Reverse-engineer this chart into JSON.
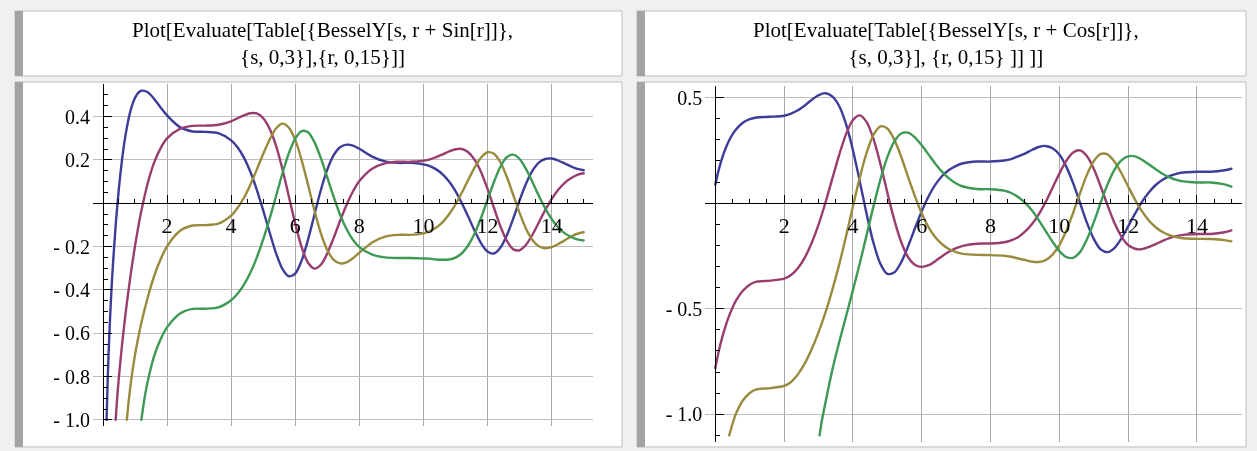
{
  "chart_data": [
    {
      "type": "line",
      "title": "Plot[Evaluate[Table[{BesselY[s, r + Sin[r]]},\n{s, 0,3}],{r, 0,15}]]",
      "xlim": [
        -0.3,
        15.3
      ],
      "ylim": [
        -1.03,
        0.55
      ],
      "xticks": [
        {
          "value": 0.5,
          "label": null
        },
        {
          "value": 1,
          "label": null
        },
        {
          "value": 1.5,
          "label": null
        },
        2,
        {
          "value": 2.5,
          "label": null
        },
        {
          "value": 3,
          "label": null
        },
        {
          "value": 3.5,
          "label": null
        },
        4,
        {
          "value": 4.5,
          "label": null
        },
        {
          "value": 5,
          "label": null
        },
        {
          "value": 5.5,
          "label": null
        },
        6,
        {
          "value": 6.5,
          "label": null
        },
        {
          "value": 7,
          "label": null
        },
        {
          "value": 7.5,
          "label": null
        },
        8,
        {
          "value": 8.5,
          "label": null
        },
        {
          "value": 9,
          "label": null
        },
        {
          "value": 9.5,
          "label": null
        },
        10,
        {
          "value": 10.5,
          "label": null
        },
        {
          "value": 11,
          "label": null
        },
        {
          "value": 11.5,
          "label": null
        },
        12,
        {
          "value": 12.5,
          "label": null
        },
        {
          "value": 13,
          "label": null
        },
        {
          "value": 13.5,
          "label": null
        },
        14,
        {
          "value": 14.5,
          "label": null
        },
        {
          "value": 15,
          "label": null
        }
      ],
      "yticks": [
        {
          "value": 0.5,
          "label": null
        },
        {
          "value": 0.45,
          "label": null
        },
        0.4,
        {
          "value": 0.35,
          "label": null
        },
        {
          "value": 0.3,
          "label": null
        },
        {
          "value": 0.25,
          "label": null
        },
        0.2,
        {
          "value": 0.15,
          "label": null
        },
        {
          "value": 0.1,
          "label": null
        },
        {
          "value": 0.05,
          "label": null
        },
        {
          "value": -0.05,
          "label": null
        },
        {
          "value": -0.1,
          "label": null
        },
        {
          "value": -0.15,
          "label": null
        },
        {
          "value": -0.2,
          "label": "- 0.2"
        },
        {
          "value": -0.25,
          "label": null
        },
        {
          "value": -0.3,
          "label": null
        },
        {
          "value": -0.35,
          "label": null
        },
        {
          "value": -0.4,
          "label": "- 0.4"
        },
        {
          "value": -0.45,
          "label": null
        },
        {
          "value": -0.5,
          "label": null
        },
        {
          "value": -0.55,
          "label": null
        },
        {
          "value": -0.6,
          "label": "- 0.6"
        },
        {
          "value": -0.65,
          "label": null
        },
        {
          "value": -0.7,
          "label": null
        },
        {
          "value": -0.75,
          "label": null
        },
        {
          "value": -0.8,
          "label": "- 0.8"
        },
        {
          "value": -0.85,
          "label": null
        },
        {
          "value": -0.9,
          "label": null
        },
        {
          "value": -0.95,
          "label": null
        },
        {
          "value": -1.0,
          "label": "- 1.0"
        }
      ],
      "grid": true,
      "series": [
        {
          "color": "#3d3d99",
          "x": [
            0.114,
            0.15,
            0.2,
            0.25,
            0.3,
            0.4,
            0.5,
            0.6,
            0.7,
            0.8,
            0.9,
            1.0,
            1.1,
            1.2,
            1.4,
            1.6,
            1.8,
            2.0,
            2.4,
            2.8,
            3.2,
            3.6,
            4.0,
            4.2,
            4.4,
            4.6,
            4.8,
            5.0,
            5.2,
            5.4,
            5.6,
            5.8,
            6.0,
            6.2,
            6.4,
            6.6,
            6.8,
            7.0,
            7.2,
            7.4,
            7.6,
            7.8,
            8.0,
            8.4,
            8.8,
            9.2,
            9.6,
            10.0,
            10.2,
            10.4,
            10.6,
            10.8,
            11.0,
            11.2,
            11.4,
            11.6,
            11.8,
            12.0,
            12.2,
            12.4,
            12.6,
            12.8,
            13.0,
            13.2,
            13.4,
            13.6,
            13.8,
            14.0,
            14.2,
            14.4,
            14.6,
            14.8,
            15.0
          ],
          "values": [
            -1.0,
            -0.809,
            -0.608,
            -0.448,
            -0.314,
            -0.098,
            0.071,
            0.205,
            0.309,
            0.389,
            0.447,
            0.485,
            0.509,
            0.519,
            0.512,
            0.481,
            0.442,
            0.405,
            0.351,
            0.331,
            0.329,
            0.323,
            0.29,
            0.258,
            0.21,
            0.145,
            0.063,
            -0.033,
            -0.134,
            -0.23,
            -0.303,
            -0.337,
            -0.325,
            -0.265,
            -0.168,
            -0.053,
            0.061,
            0.155,
            0.222,
            0.258,
            0.27,
            0.266,
            0.251,
            0.215,
            0.193,
            0.186,
            0.186,
            0.179,
            0.171,
            0.156,
            0.133,
            0.1,
            0.056,
            0.0,
            -0.063,
            -0.128,
            -0.185,
            -0.223,
            -0.232,
            -0.206,
            -0.149,
            -0.072,
            0.013,
            0.09,
            0.149,
            0.187,
            0.204,
            0.206,
            0.197,
            0.184,
            0.17,
            0.158,
            0.152
          ]
        },
        {
          "color": "#993d71",
          "x": [
            0.397,
            0.45,
            0.5,
            0.6,
            0.7,
            0.8,
            0.9,
            1.0,
            1.1,
            1.2,
            1.4,
            1.6,
            1.8,
            2.0,
            2.4,
            2.8,
            3.2,
            3.6,
            4.0,
            4.2,
            4.4,
            4.6,
            4.8,
            5.0,
            5.2,
            5.4,
            5.6,
            5.8,
            6.0,
            6.2,
            6.4,
            6.6,
            6.8,
            7.0,
            7.2,
            7.4,
            7.6,
            7.8,
            8.0,
            8.4,
            8.8,
            9.2,
            9.6,
            10.0,
            10.2,
            10.4,
            10.6,
            10.8,
            11.0,
            11.2,
            11.4,
            11.6,
            11.8,
            12.0,
            12.2,
            12.4,
            12.6,
            12.8,
            13.0,
            13.2,
            13.4,
            13.6,
            13.8,
            14.0,
            14.2,
            14.4,
            14.6,
            14.8,
            15.0
          ],
          "values": [
            -1.0,
            -0.889,
            -0.8,
            -0.648,
            -0.518,
            -0.401,
            -0.295,
            -0.199,
            -0.112,
            -0.035,
            0.093,
            0.188,
            0.254,
            0.299,
            0.343,
            0.357,
            0.358,
            0.362,
            0.378,
            0.392,
            0.405,
            0.415,
            0.414,
            0.392,
            0.344,
            0.266,
            0.158,
            0.032,
            -0.094,
            -0.203,
            -0.275,
            -0.302,
            -0.284,
            -0.232,
            -0.16,
            -0.081,
            -0.008,
            0.054,
            0.102,
            0.159,
            0.184,
            0.191,
            0.191,
            0.196,
            0.202,
            0.213,
            0.225,
            0.239,
            0.249,
            0.25,
            0.235,
            0.2,
            0.143,
            0.066,
            -0.021,
            -0.106,
            -0.173,
            -0.212,
            -0.217,
            -0.192,
            -0.146,
            -0.089,
            -0.032,
            0.019,
            0.061,
            0.093,
            0.115,
            0.131,
            0.138
          ]
        },
        {
          "color": "#998b3d",
          "x": [
            0.747,
            0.8,
            0.9,
            1.0,
            1.1,
            1.2,
            1.4,
            1.6,
            1.8,
            2.0,
            2.4,
            2.8,
            3.2,
            3.6,
            4.0,
            4.2,
            4.4,
            4.6,
            4.8,
            5.0,
            5.2,
            5.4,
            5.6,
            5.8,
            6.0,
            6.2,
            6.4,
            6.6,
            6.8,
            7.0,
            7.2,
            7.4,
            7.6,
            7.8,
            8.0,
            8.4,
            8.8,
            9.2,
            9.6,
            10.0,
            10.2,
            10.4,
            10.6,
            10.8,
            11.0,
            11.2,
            11.4,
            11.6,
            11.8,
            12.0,
            12.2,
            12.4,
            12.6,
            12.8,
            13.0,
            13.2,
            13.4,
            13.6,
            13.8,
            14.0,
            14.2,
            14.4,
            14.6,
            14.8,
            15.0
          ],
          "values": [
            -1.0,
            -0.918,
            -0.798,
            -0.701,
            -0.622,
            -0.552,
            -0.434,
            -0.336,
            -0.259,
            -0.199,
            -0.128,
            -0.103,
            -0.101,
            -0.094,
            -0.057,
            -0.022,
            0.025,
            0.085,
            0.155,
            0.227,
            0.293,
            0.345,
            0.367,
            0.349,
            0.292,
            0.199,
            0.085,
            -0.034,
            -0.139,
            -0.216,
            -0.262,
            -0.278,
            -0.273,
            -0.254,
            -0.228,
            -0.181,
            -0.154,
            -0.146,
            -0.146,
            -0.139,
            -0.129,
            -0.112,
            -0.087,
            -0.051,
            -0.006,
            0.049,
            0.108,
            0.165,
            0.211,
            0.235,
            0.228,
            0.189,
            0.122,
            0.039,
            -0.045,
            -0.118,
            -0.17,
            -0.199,
            -0.208,
            -0.203,
            -0.189,
            -0.172,
            -0.155,
            -0.141,
            -0.134
          ]
        },
        {
          "color": "#3d9954",
          "x": [
            1.2,
            1.3,
            1.4,
            1.6,
            1.8,
            2.0,
            2.4,
            2.8,
            3.2,
            3.6,
            4.0,
            4.2,
            4.4,
            4.6,
            4.8,
            5.0,
            5.2,
            5.4,
            5.6,
            5.8,
            6.0,
            6.2,
            6.4,
            6.6,
            6.8,
            7.0,
            7.2,
            7.4,
            7.6,
            7.8,
            8.0,
            8.4,
            8.8,
            9.2,
            9.6,
            10.0,
            10.2,
            10.4,
            10.6,
            10.8,
            11.0,
            11.2,
            11.4,
            11.6,
            11.8,
            12.0,
            12.2,
            12.4,
            12.6,
            12.8,
            13.0,
            13.2,
            13.4,
            13.6,
            13.8,
            14.0,
            14.2,
            14.4,
            14.6,
            14.8,
            15.0
          ],
          "values": [
            -1.0,
            -0.899,
            -0.821,
            -0.705,
            -0.628,
            -0.573,
            -0.51,
            -0.488,
            -0.487,
            -0.481,
            -0.448,
            -0.418,
            -0.376,
            -0.321,
            -0.251,
            -0.167,
            -0.072,
            0.032,
            0.137,
            0.23,
            0.298,
            0.333,
            0.327,
            0.282,
            0.208,
            0.119,
            0.029,
            -0.053,
            -0.119,
            -0.169,
            -0.203,
            -0.237,
            -0.25,
            -0.253,
            -0.253,
            -0.255,
            -0.256,
            -0.26,
            -0.261,
            -0.26,
            -0.251,
            -0.231,
            -0.194,
            -0.139,
            -0.067,
            0.016,
            0.098,
            0.168,
            0.212,
            0.224,
            0.204,
            0.158,
            0.098,
            0.034,
            -0.024,
            -0.073,
            -0.111,
            -0.138,
            -0.155,
            -0.167,
            -0.172
          ]
        }
      ]
    },
    {
      "type": "line",
      "title": "Plot[Evaluate[Table[{BesselY[s, r + Cos[r]]},\n{s, 0,3}], {r, 0,15} ]] ]]",
      "xlim": [
        -0.3,
        15.3
      ],
      "ylim": [
        -1.13,
        0.555
      ],
      "xticks": [
        {
          "value": 0.5,
          "label": null
        },
        {
          "value": 1,
          "label": null
        },
        {
          "value": 1.5,
          "label": null
        },
        2,
        {
          "value": 2.5,
          "label": null
        },
        {
          "value": 3,
          "label": null
        },
        {
          "value": 3.5,
          "label": null
        },
        4,
        {
          "value": 4.5,
          "label": null
        },
        {
          "value": 5,
          "label": null
        },
        {
          "value": 5.5,
          "label": null
        },
        6,
        {
          "value": 6.5,
          "label": null
        },
        {
          "value": 7,
          "label": null
        },
        {
          "value": 7.5,
          "label": null
        },
        8,
        {
          "value": 8.5,
          "label": null
        },
        {
          "value": 9,
          "label": null
        },
        {
          "value": 9.5,
          "label": null
        },
        10,
        {
          "value": 10.5,
          "label": null
        },
        {
          "value": 11,
          "label": null
        },
        {
          "value": 11.5,
          "label": null
        },
        12,
        {
          "value": 12.5,
          "label": null
        },
        {
          "value": 13,
          "label": null
        },
        {
          "value": 13.5,
          "label": null
        },
        14,
        {
          "value": 14.5,
          "label": null
        },
        {
          "value": 15,
          "label": null
        }
      ],
      "yticks": [
        0.5,
        {
          "value": 0.4,
          "label": null
        },
        {
          "value": 0.3,
          "label": null
        },
        {
          "value": 0.2,
          "label": null
        },
        {
          "value": 0.1,
          "label": null
        },
        {
          "value": -0.1,
          "label": null
        },
        {
          "value": -0.2,
          "label": null
        },
        {
          "value": -0.3,
          "label": null
        },
        {
          "value": -0.4,
          "label": null
        },
        {
          "value": -0.5,
          "label": "- 0.5"
        },
        {
          "value": -0.6,
          "label": null
        },
        {
          "value": -0.7,
          "label": null
        },
        {
          "value": -0.8,
          "label": null
        },
        {
          "value": -0.9,
          "label": null
        },
        {
          "value": -1.0,
          "label": "- 1.0"
        },
        {
          "value": -1.1,
          "label": null
        }
      ],
      "grid": true,
      "series": [
        {
          "color": "#3d3d99",
          "x": [
            0,
            0.1,
            0.2,
            0.3,
            0.4,
            0.5,
            0.6,
            0.8,
            1.0,
            1.2,
            1.6,
            2.0,
            2.2,
            2.4,
            2.6,
            2.8,
            3.0,
            3.2,
            3.4,
            3.6,
            3.8,
            4.0,
            4.2,
            4.4,
            4.6,
            4.8,
            5.0,
            5.2,
            5.4,
            5.6,
            5.8,
            6.0,
            6.2,
            6.4,
            6.6,
            6.8,
            7.0,
            7.2,
            7.6,
            8.0,
            8.4,
            8.6,
            8.8,
            9.0,
            9.2,
            9.4,
            9.6,
            9.8,
            10.0,
            10.2,
            10.4,
            10.6,
            10.8,
            11.0,
            11.2,
            11.4,
            11.6,
            11.8,
            12.0,
            12.2,
            12.4,
            12.6,
            12.8,
            13.0,
            13.2,
            13.4,
            13.6,
            14.0,
            14.4,
            14.8,
            15.0
          ],
          "values": [
            0.088,
            0.159,
            0.215,
            0.26,
            0.297,
            0.326,
            0.349,
            0.381,
            0.398,
            0.406,
            0.409,
            0.414,
            0.424,
            0.44,
            0.463,
            0.489,
            0.511,
            0.521,
            0.506,
            0.46,
            0.374,
            0.251,
            0.102,
            -0.053,
            -0.19,
            -0.288,
            -0.335,
            -0.329,
            -0.281,
            -0.206,
            -0.12,
            -0.038,
            0.033,
            0.089,
            0.13,
            0.158,
            0.177,
            0.189,
            0.197,
            0.197,
            0.202,
            0.209,
            0.222,
            0.235,
            0.252,
            0.266,
            0.271,
            0.26,
            0.23,
            0.173,
            0.095,
            0.002,
            -0.092,
            -0.169,
            -0.219,
            -0.232,
            -0.213,
            -0.168,
            -0.11,
            -0.05,
            0.006,
            0.051,
            0.086,
            0.111,
            0.128,
            0.139,
            0.145,
            0.149,
            0.149,
            0.156,
            0.163
          ]
        },
        {
          "color": "#993d71",
          "x": [
            0,
            0.1,
            0.2,
            0.3,
            0.4,
            0.5,
            0.6,
            0.8,
            1.0,
            1.2,
            1.6,
            2.0,
            2.2,
            2.4,
            2.6,
            2.8,
            3.0,
            3.2,
            3.4,
            3.6,
            3.8,
            4.0,
            4.2,
            4.4,
            4.6,
            4.8,
            5.0,
            5.2,
            5.4,
            5.6,
            5.8,
            6.0,
            6.2,
            6.4,
            6.6,
            6.8,
            7.0,
            7.2,
            7.6,
            8.0,
            8.4,
            8.6,
            8.8,
            9.0,
            9.2,
            9.4,
            9.6,
            9.8,
            10.0,
            10.2,
            10.4,
            10.6,
            10.8,
            11.0,
            11.2,
            11.4,
            11.6,
            11.8,
            12.0,
            12.2,
            12.4,
            12.6,
            12.8,
            13.0,
            13.2,
            13.4,
            13.6,
            14.0,
            14.4,
            14.8,
            15.0
          ],
          "values": [
            -0.781,
            -0.702,
            -0.636,
            -0.581,
            -0.534,
            -0.495,
            -0.462,
            -0.415,
            -0.386,
            -0.372,
            -0.367,
            -0.358,
            -0.34,
            -0.308,
            -0.258,
            -0.189,
            -0.102,
            0.002,
            0.116,
            0.229,
            0.327,
            0.394,
            0.416,
            0.384,
            0.303,
            0.185,
            0.05,
            -0.078,
            -0.183,
            -0.255,
            -0.292,
            -0.302,
            -0.294,
            -0.274,
            -0.25,
            -0.229,
            -0.213,
            -0.202,
            -0.192,
            -0.191,
            -0.185,
            -0.176,
            -0.161,
            -0.135,
            -0.1,
            -0.053,
            0.005,
            0.072,
            0.14,
            0.2,
            0.24,
            0.25,
            0.223,
            0.163,
            0.08,
            -0.01,
            -0.093,
            -0.157,
            -0.198,
            -0.216,
            -0.218,
            -0.208,
            -0.194,
            -0.179,
            -0.166,
            -0.156,
            -0.15,
            -0.146,
            -0.146,
            -0.138,
            -0.129
          ]
        },
        {
          "color": "#998b3d",
          "x": [
            0.405,
            0.5,
            0.6,
            0.8,
            1.0,
            1.2,
            1.6,
            2.0,
            2.2,
            2.4,
            2.6,
            2.8,
            3.0,
            3.2,
            3.4,
            3.6,
            3.8,
            4.0,
            4.2,
            4.4,
            4.6,
            4.8,
            5.0,
            5.2,
            5.4,
            5.6,
            5.8,
            6.0,
            6.2,
            6.4,
            6.6,
            6.8,
            7.0,
            7.2,
            7.6,
            8.0,
            8.4,
            8.6,
            8.8,
            9.0,
            9.2,
            9.4,
            9.6,
            9.8,
            10.0,
            10.2,
            10.4,
            10.6,
            10.8,
            11.0,
            11.2,
            11.4,
            11.6,
            11.8,
            12.0,
            12.2,
            12.4,
            12.6,
            12.8,
            13.0,
            13.2,
            13.4,
            13.6,
            14.0,
            14.4,
            14.8,
            15.0
          ],
          "values": [
            -1.1,
            -1.045,
            -0.998,
            -0.935,
            -0.899,
            -0.882,
            -0.876,
            -0.866,
            -0.847,
            -0.811,
            -0.759,
            -0.692,
            -0.612,
            -0.519,
            -0.411,
            -0.291,
            -0.157,
            -0.015,
            0.122,
            0.24,
            0.325,
            0.364,
            0.354,
            0.302,
            0.221,
            0.126,
            0.033,
            -0.049,
            -0.115,
            -0.163,
            -0.196,
            -0.218,
            -0.232,
            -0.24,
            -0.245,
            -0.246,
            -0.249,
            -0.254,
            -0.262,
            -0.269,
            -0.277,
            -0.279,
            -0.27,
            -0.244,
            -0.199,
            -0.131,
            -0.046,
            0.047,
            0.134,
            0.199,
            0.233,
            0.231,
            0.197,
            0.143,
            0.079,
            0.017,
            -0.038,
            -0.082,
            -0.114,
            -0.137,
            -0.152,
            -0.161,
            -0.166,
            -0.169,
            -0.17,
            -0.175,
            -0.181
          ]
        },
        {
          "color": "#3d9954",
          "x": [
            3.03,
            3.1,
            3.2,
            3.4,
            3.6,
            3.8,
            4.0,
            4.2,
            4.4,
            4.6,
            4.8,
            5.0,
            5.2,
            5.4,
            5.6,
            5.8,
            6.0,
            6.2,
            6.4,
            6.6,
            6.8,
            7.0,
            7.2,
            7.6,
            8.0,
            8.4,
            8.6,
            8.8,
            9.0,
            9.2,
            9.4,
            9.6,
            9.8,
            10.0,
            10.2,
            10.4,
            10.6,
            10.8,
            11.0,
            11.2,
            11.4,
            11.6,
            11.8,
            12.0,
            12.2,
            12.4,
            12.6,
            12.8,
            13.0,
            13.2,
            13.4,
            13.6,
            14.0,
            14.4,
            14.8,
            15.0
          ],
          "values": [
            -1.1,
            -1.028,
            -0.945,
            -0.791,
            -0.659,
            -0.536,
            -0.412,
            -0.285,
            -0.149,
            -0.013,
            0.113,
            0.218,
            0.291,
            0.33,
            0.334,
            0.312,
            0.274,
            0.23,
            0.186,
            0.147,
            0.116,
            0.093,
            0.079,
            0.067,
            0.066,
            0.059,
            0.048,
            0.029,
            0.002,
            -0.034,
            -0.08,
            -0.131,
            -0.182,
            -0.227,
            -0.255,
            -0.259,
            -0.232,
            -0.172,
            -0.091,
            0.002,
            0.089,
            0.158,
            0.203,
            0.222,
            0.222,
            0.206,
            0.184,
            0.161,
            0.139,
            0.122,
            0.11,
            0.103,
            0.098,
            0.098,
            0.089,
            0.078
          ]
        }
      ]
    }
  ]
}
